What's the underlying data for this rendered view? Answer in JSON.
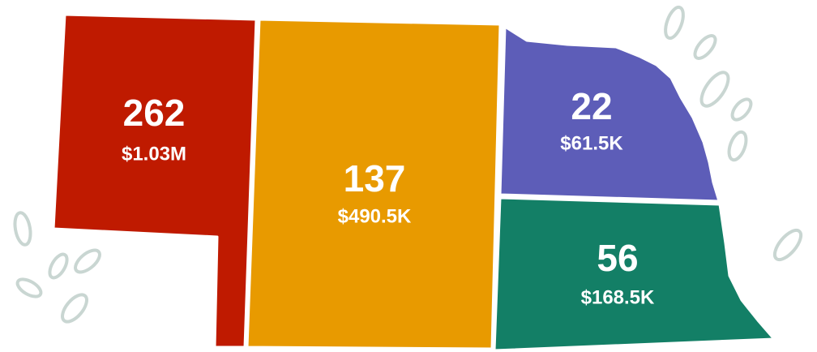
{
  "regions": [
    {
      "count": 262,
      "amount": "$1.03M",
      "color": "#bf1a00"
    },
    {
      "count": 137,
      "amount": "$490.5K",
      "color": "#e89a00"
    },
    {
      "count": 22,
      "amount": "$61.5K",
      "color": "#5d5db8"
    },
    {
      "count": 56,
      "amount": "$168.5K",
      "color": "#137f66"
    }
  ]
}
